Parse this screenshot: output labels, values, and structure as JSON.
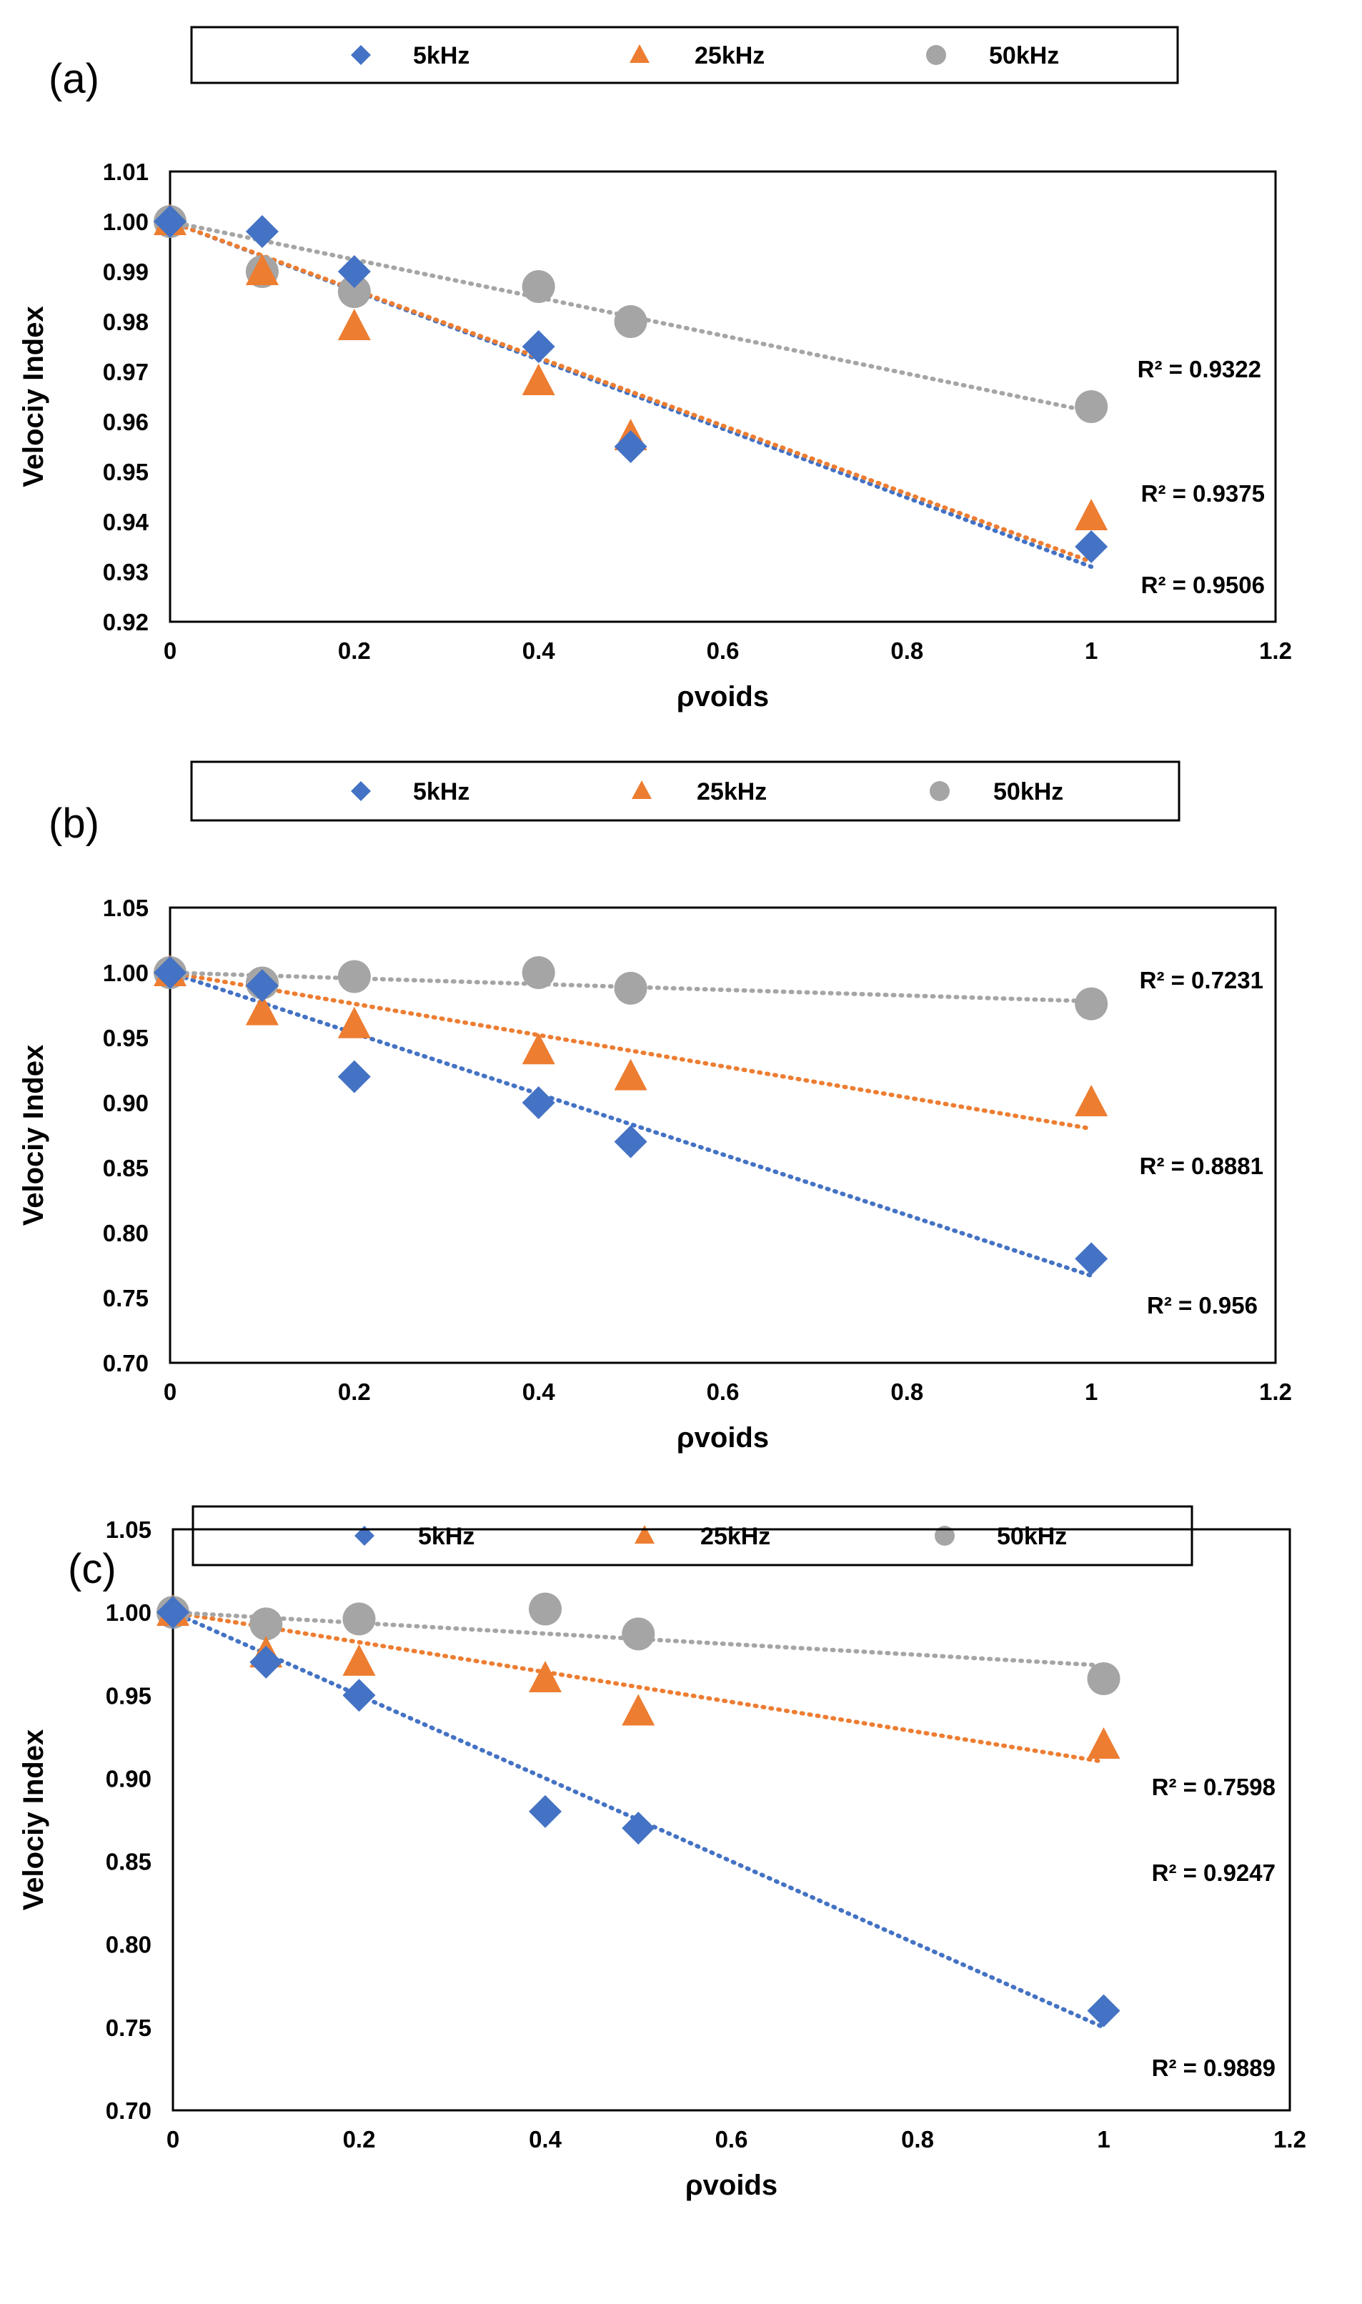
{
  "chart_data": [
    {
      "type": "scatter",
      "panel_label": "(a)",
      "xlabel": "ρvoids",
      "ylabel": "Velociy Index",
      "xlim": [
        0,
        1.2
      ],
      "ylim": [
        0.92,
        1.01
      ],
      "xticks": [
        "0",
        "0.2",
        "0.4",
        "0.6",
        "0.8",
        "1",
        "1.2"
      ],
      "yticks": [
        "0.92",
        "0.93",
        "0.94",
        "0.95",
        "0.96",
        "0.97",
        "0.98",
        "0.99",
        "1.00",
        "1.01"
      ],
      "grid": false,
      "legend_position": "top",
      "trendline": "linear (dotted)",
      "series": [
        {
          "name": "5kHz",
          "marker": "diamond",
          "color": "#4472C4",
          "x": [
            0,
            0.1,
            0.2,
            0.4,
            0.5,
            1
          ],
          "y": [
            1.0,
            0.998,
            0.99,
            0.975,
            0.955,
            0.935
          ],
          "r2_label": "R² = 0.9506",
          "trend_y": [
            1.0,
            0.931
          ]
        },
        {
          "name": "25kHz",
          "marker": "triangle",
          "color": "#ED7D31",
          "x": [
            0,
            0.1,
            0.2,
            0.4,
            0.5,
            1
          ],
          "y": [
            1.0,
            0.99,
            0.979,
            0.968,
            0.957,
            0.941
          ],
          "r2_label": "R² = 0.9375",
          "trend_y": [
            1.0,
            0.932
          ]
        },
        {
          "name": "50kHz",
          "marker": "circle",
          "color": "#A5A5A5",
          "x": [
            0,
            0.1,
            0.2,
            0.4,
            0.5,
            1
          ],
          "y": [
            1.0,
            0.99,
            0.986,
            0.987,
            0.98,
            0.963
          ],
          "r2_label": "R² = 0.9322",
          "trend_y": [
            1.0,
            0.962
          ]
        }
      ]
    },
    {
      "type": "scatter",
      "panel_label": "(b)",
      "xlabel": "ρvoids",
      "ylabel": "Velociy Index",
      "xlim": [
        0,
        1.2
      ],
      "ylim": [
        0.7,
        1.05
      ],
      "xticks": [
        "0",
        "0.2",
        "0.4",
        "0.6",
        "0.8",
        "1",
        "1.2"
      ],
      "yticks": [
        "0.70",
        "0.75",
        "0.80",
        "0.85",
        "0.90",
        "0.95",
        "1.00",
        "1.05"
      ],
      "grid": false,
      "legend_position": "top",
      "trendline": "linear (dotted)",
      "series": [
        {
          "name": "5kHz",
          "marker": "diamond",
          "color": "#4472C4",
          "x": [
            0,
            0.1,
            0.2,
            0.4,
            0.5,
            1
          ],
          "y": [
            1.0,
            0.99,
            0.92,
            0.9,
            0.87,
            0.78
          ],
          "r2_label": "R² = 0.956",
          "trend_y": [
            1.0,
            0.767
          ]
        },
        {
          "name": "25kHz",
          "marker": "triangle",
          "color": "#ED7D31",
          "x": [
            0,
            0.1,
            0.2,
            0.4,
            0.5,
            1
          ],
          "y": [
            1.0,
            0.97,
            0.96,
            0.94,
            0.92,
            0.9
          ],
          "r2_label": "R² = 0.8881",
          "trend_y": [
            1.0,
            0.88
          ]
        },
        {
          "name": "50kHz",
          "marker": "circle",
          "color": "#A5A5A5",
          "x": [
            0,
            0.1,
            0.2,
            0.4,
            0.5,
            1
          ],
          "y": [
            1.0,
            0.992,
            0.997,
            1.0,
            0.988,
            0.976
          ],
          "r2_label": "R² = 0.7231",
          "trend_y": [
            1.0,
            0.978
          ]
        }
      ]
    },
    {
      "type": "scatter",
      "panel_label": "(c)",
      "xlabel": "ρvoids",
      "ylabel": "Velociy Index",
      "xlim": [
        0,
        1.2
      ],
      "ylim": [
        0.7,
        1.05
      ],
      "xticks": [
        "0",
        "0.2",
        "0.4",
        "0.6",
        "0.8",
        "1",
        "1.2"
      ],
      "yticks": [
        "0.70",
        "0.75",
        "0.80",
        "0.85",
        "0.90",
        "0.95",
        "1.00",
        "1.05"
      ],
      "grid": false,
      "legend_position": "top",
      "trendline": "linear (dotted)",
      "series": [
        {
          "name": "5kHz",
          "marker": "diamond",
          "color": "#4472C4",
          "x": [
            0,
            0.1,
            0.2,
            0.4,
            0.5,
            1
          ],
          "y": [
            1.0,
            0.97,
            0.95,
            0.88,
            0.87,
            0.76
          ],
          "r2_label": "R² = 0.9889",
          "trend_y": [
            1.0,
            0.75
          ]
        },
        {
          "name": "25kHz",
          "marker": "triangle",
          "color": "#ED7D31",
          "x": [
            0,
            0.1,
            0.2,
            0.4,
            0.5,
            1
          ],
          "y": [
            1.0,
            0.975,
            0.97,
            0.96,
            0.94,
            0.92
          ],
          "r2_label": "R² = 0.9247",
          "trend_y": [
            1.0,
            0.91
          ]
        },
        {
          "name": "50kHz",
          "marker": "circle",
          "color": "#A5A5A5",
          "x": [
            0,
            0.1,
            0.2,
            0.4,
            0.5,
            1
          ],
          "y": [
            1.0,
            0.993,
            0.996,
            1.002,
            0.987,
            0.96
          ],
          "r2_label": "R² = 0.7598",
          "trend_y": [
            1.0,
            0.968
          ]
        }
      ]
    }
  ]
}
